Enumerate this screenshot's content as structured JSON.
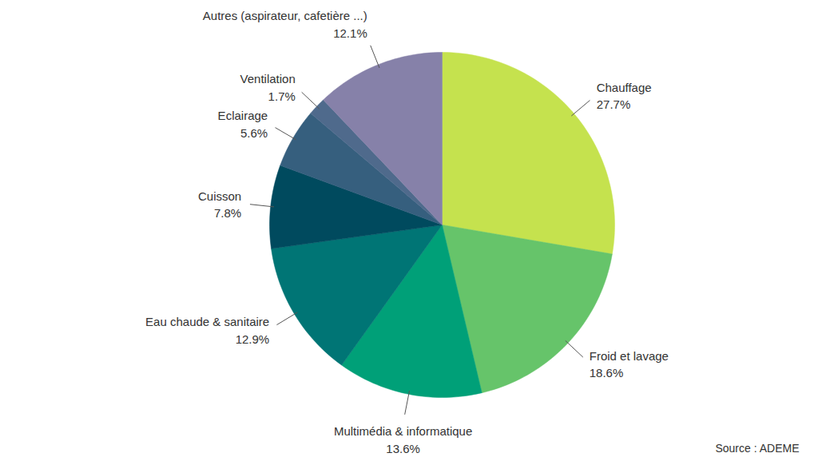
{
  "chart_data": {
    "type": "pie",
    "categories": [
      "Chauffage",
      "Froid et lavage",
      "Multimédia & informatique",
      "Eau chaude & sanitaire",
      "Cuisson",
      "Eclairage",
      "Ventilation",
      "Autres (aspirateur, cafetière ...)"
    ],
    "values": [
      27.7,
      18.6,
      13.6,
      12.9,
      7.8,
      5.6,
      1.7,
      12.1
    ],
    "value_labels": [
      "27.7%",
      "18.6%",
      "13.6%",
      "12.9%",
      "7.8%",
      "5.6%",
      "1.7%",
      "12.1%"
    ],
    "colors": [
      "#c5e24e",
      "#66c46a",
      "#00a078",
      "#007575",
      "#004a5e",
      "#365f7e",
      "#4f6a8c",
      "#8681a9"
    ],
    "data_labels": true,
    "source": "Source : ADEME"
  }
}
